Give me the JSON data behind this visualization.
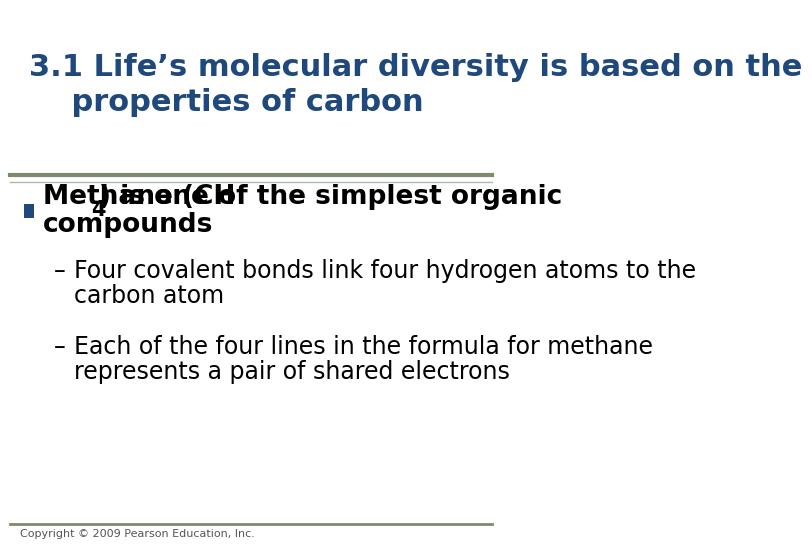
{
  "title_line1": "3.1 Life’s molecular diversity is based on the",
  "title_line2": "    properties of carbon",
  "title_color": "#1F497D",
  "title_fontsize": 22,
  "separator_color1": "#7B8C6B",
  "separator_color2": "#B0B8A8",
  "bullet_color": "#1F497D",
  "bullet_text_line1": "Methane (CH",
  "bullet_sub": "4",
  "bullet_text_line2": ") is one of the simplest organic",
  "bullet_text_line3": "compounds",
  "bullet_fontsize": 19,
  "sub1_dash": "–",
  "sub1_text_line1": "Four covalent bonds link four hydrogen atoms to the",
  "sub1_text_line2": "carbon atom",
  "sub2_dash": "–",
  "sub2_text_line1": "Each of the four lines in the formula for methane",
  "sub2_text_line2": "represents a pair of shared electrons",
  "sub_fontsize": 17,
  "body_text_color": "#000000",
  "copyright_text": "Copyright © 2009 Pearson Education, Inc.",
  "copyright_fontsize": 8,
  "background_color": "#FFFFFF",
  "bottom_line_color": "#7B8C6B"
}
